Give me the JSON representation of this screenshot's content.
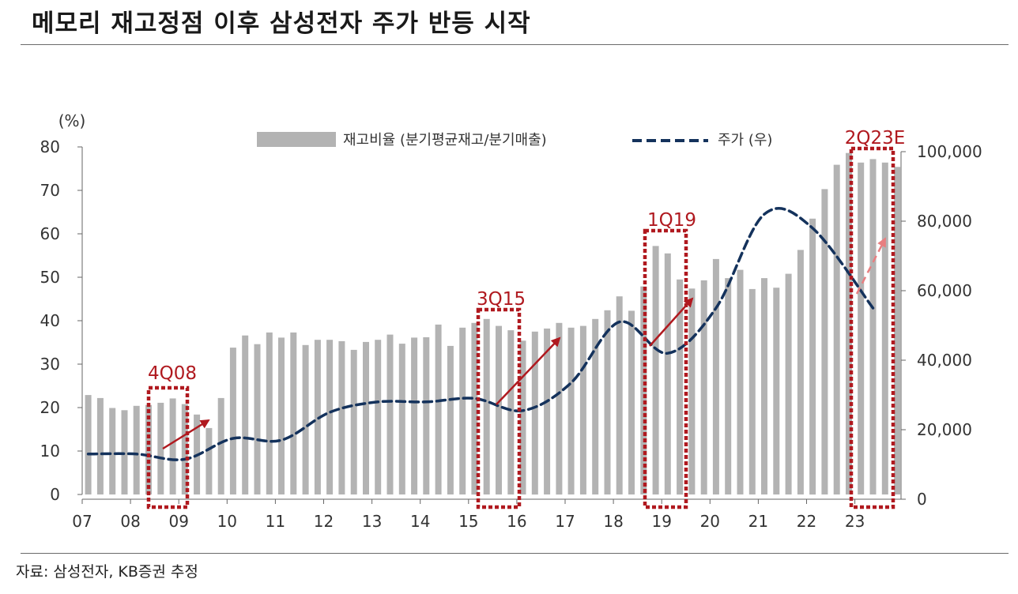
{
  "header": {
    "title": "메모리 재고정점 이후 삼성전자 주가 반등 시작"
  },
  "footer": {
    "source": "자료: 삼성전자, KB증권 추정"
  },
  "chart_data": {
    "type": "bar",
    "title": "메모리 재고정점 이후 삼성전자 주가 반등 시작",
    "y_left_unit": "(%)",
    "y_left_lim": [
      0,
      80
    ],
    "y_left_ticks": [
      "0",
      "10",
      "20",
      "30",
      "40",
      "50",
      "60",
      "70",
      "80"
    ],
    "y_right_lim": [
      0,
      100000
    ],
    "y_right_ticks": [
      "0",
      "20,000",
      "40,000",
      "60,000",
      "80,000",
      "100,000"
    ],
    "x_ticks": [
      "07",
      "08",
      "09",
      "10",
      "11",
      "12",
      "13",
      "14",
      "15",
      "16",
      "17",
      "18",
      "19",
      "20",
      "21",
      "22",
      "23"
    ],
    "grid": false,
    "legend_position": "top",
    "series": [
      {
        "name": "재고비율 (분기평균재고/분기매출)",
        "axis": "left",
        "type": "bar",
        "color": "#b3b3b3",
        "x": [
          "1Q07",
          "2Q07",
          "3Q07",
          "4Q07",
          "1Q08",
          "2Q08",
          "3Q08",
          "4Q08",
          "1Q09",
          "2Q09",
          "3Q09",
          "4Q09",
          "1Q10",
          "2Q10",
          "3Q10",
          "4Q10",
          "1Q11",
          "2Q11",
          "3Q11",
          "4Q11",
          "1Q12",
          "2Q12",
          "3Q12",
          "4Q12",
          "1Q13",
          "2Q13",
          "3Q13",
          "4Q13",
          "1Q14",
          "2Q14",
          "3Q14",
          "4Q14",
          "1Q15",
          "2Q15",
          "3Q15",
          "4Q15",
          "1Q16",
          "2Q16",
          "3Q16",
          "4Q16",
          "1Q17",
          "2Q17",
          "3Q17",
          "4Q17",
          "1Q18",
          "2Q18",
          "3Q18",
          "4Q18",
          "1Q19",
          "2Q19",
          "3Q19",
          "4Q19",
          "1Q20",
          "2Q20",
          "3Q20",
          "4Q20",
          "1Q21",
          "2Q21",
          "3Q21",
          "4Q21",
          "1Q22",
          "2Q22",
          "3Q22",
          "4Q22",
          "1Q23",
          "2Q23E",
          "3Q23E",
          "4Q23E"
        ],
        "values": [
          22.9,
          22.2,
          19.9,
          19.4,
          20.4,
          20.6,
          21.1,
          22.1,
          20.8,
          18.4,
          15.3,
          22.2,
          33.8,
          36.6,
          34.6,
          37.3,
          36.1,
          37.3,
          34.4,
          35.6,
          35.6,
          35.3,
          33.3,
          35.1,
          35.6,
          36.8,
          34.7,
          36.1,
          36.2,
          39.1,
          34.2,
          38.4,
          39.5,
          40.4,
          38.8,
          37.8,
          35.4,
          37.5,
          38.2,
          39.5,
          38.4,
          38.8,
          40.4,
          42.4,
          45.6,
          42.3,
          47.9,
          57.2,
          55.5,
          49.5,
          47.4,
          49.3,
          54.2,
          49.8,
          51.7,
          47.3,
          49.8,
          47.6,
          50.8,
          56.3,
          63.5,
          70.3,
          75.9,
          78.6,
          76.4,
          77.2,
          76.4,
          75.4
        ]
      },
      {
        "name": "주가 (우)",
        "axis": "right",
        "type": "line",
        "style": "dashed",
        "color": "#14325c",
        "x": [
          "1Q07",
          "1Q08",
          "1Q09",
          "1Q10",
          "1Q11",
          "1Q12",
          "1Q13",
          "1Q14",
          "1Q15",
          "1Q16",
          "1Q17",
          "1Q18",
          "1Q19",
          "1Q20",
          "1Q21",
          "1Q22",
          "2Q23"
        ],
        "values": [
          13000,
          13000,
          11500,
          17500,
          17000,
          25000,
          28000,
          28000,
          29000,
          25500,
          33500,
          51000,
          42000,
          55000,
          82000,
          78000,
          55000
        ]
      }
    ],
    "annotations": [
      {
        "label": "4Q08",
        "color": "#b0191f"
      },
      {
        "label": "3Q15",
        "color": "#b0191f"
      },
      {
        "label": "1Q19",
        "color": "#b0191f"
      },
      {
        "label": "2Q23E",
        "color": "#b0191f"
      }
    ]
  }
}
